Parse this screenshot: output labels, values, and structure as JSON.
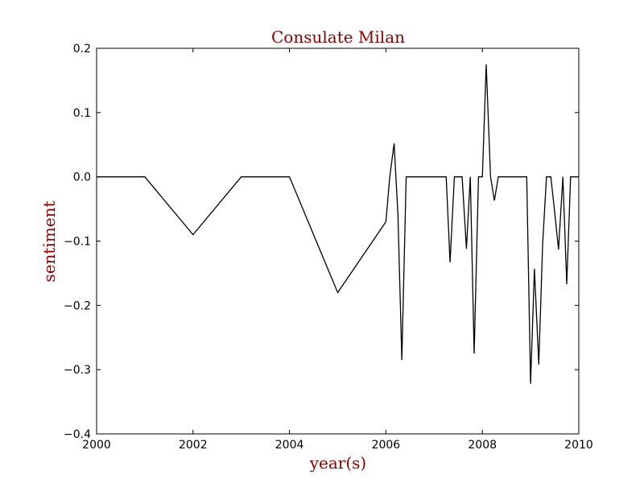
{
  "colors": {
    "title": "#8b0000",
    "axis_label": "#8b0000",
    "line": "#000000",
    "frame": "#000000",
    "background": "#ffffff"
  },
  "chart_data": {
    "type": "line",
    "title": "Consulate Milan",
    "xlabel": "year(s)",
    "ylabel": "sentiment",
    "xlim": [
      2000,
      2010
    ],
    "ylim": [
      -0.4,
      0.2
    ],
    "grid": false,
    "x_ticks": [
      2000,
      2002,
      2004,
      2006,
      2008,
      2010
    ],
    "x_tick_labels": [
      "2000",
      "2002",
      "2004",
      "2006",
      "2008",
      "2010"
    ],
    "y_ticks": [
      0.2,
      0.1,
      0.0,
      -0.1,
      -0.2,
      -0.3,
      -0.4
    ],
    "y_tick_labels": [
      "0.2",
      "0.1",
      "0.0",
      "−0.1",
      "−0.2",
      "−0.3",
      "−0.4"
    ],
    "series": [
      {
        "x": [
          2000.0,
          2001.0,
          2002.0,
          2003.0,
          2004.0,
          2005.0,
          2006.0,
          2006.08,
          2006.17,
          2006.25,
          2006.33,
          2006.42,
          2006.5,
          2006.58,
          2006.67,
          2006.75,
          2006.83,
          2006.92,
          2007.0,
          2007.08,
          2007.17,
          2007.25,
          2007.33,
          2007.42,
          2007.5,
          2007.58,
          2007.67,
          2007.75,
          2007.83,
          2007.92,
          2008.0,
          2008.08,
          2008.17,
          2008.25,
          2008.33,
          2008.42,
          2008.5,
          2008.58,
          2008.67,
          2008.75,
          2008.83,
          2008.92,
          2009.0,
          2009.08,
          2009.17,
          2009.25,
          2009.33,
          2009.42,
          2009.5,
          2009.58,
          2009.67,
          2009.75,
          2009.83,
          2009.92,
          2010.0
        ],
        "y": [
          0.0,
          0.0,
          -0.09,
          0.0,
          0.0,
          -0.18,
          -0.07,
          0.0,
          0.052,
          -0.06,
          -0.285,
          0.0,
          0.0,
          0.0,
          0.0,
          0.0,
          0.0,
          0.0,
          0.0,
          0.0,
          0.0,
          0.0,
          -0.133,
          0.0,
          0.0,
          0.0,
          -0.112,
          0.0,
          -0.275,
          0.0,
          0.0,
          0.175,
          0.0,
          -0.037,
          0.0,
          0.0,
          0.0,
          0.0,
          0.0,
          0.0,
          0.0,
          0.0,
          -0.322,
          -0.143,
          -0.292,
          -0.105,
          0.0,
          0.0,
          -0.055,
          -0.113,
          0.0,
          -0.167,
          0.0,
          0.0,
          0.0
        ]
      }
    ]
  }
}
